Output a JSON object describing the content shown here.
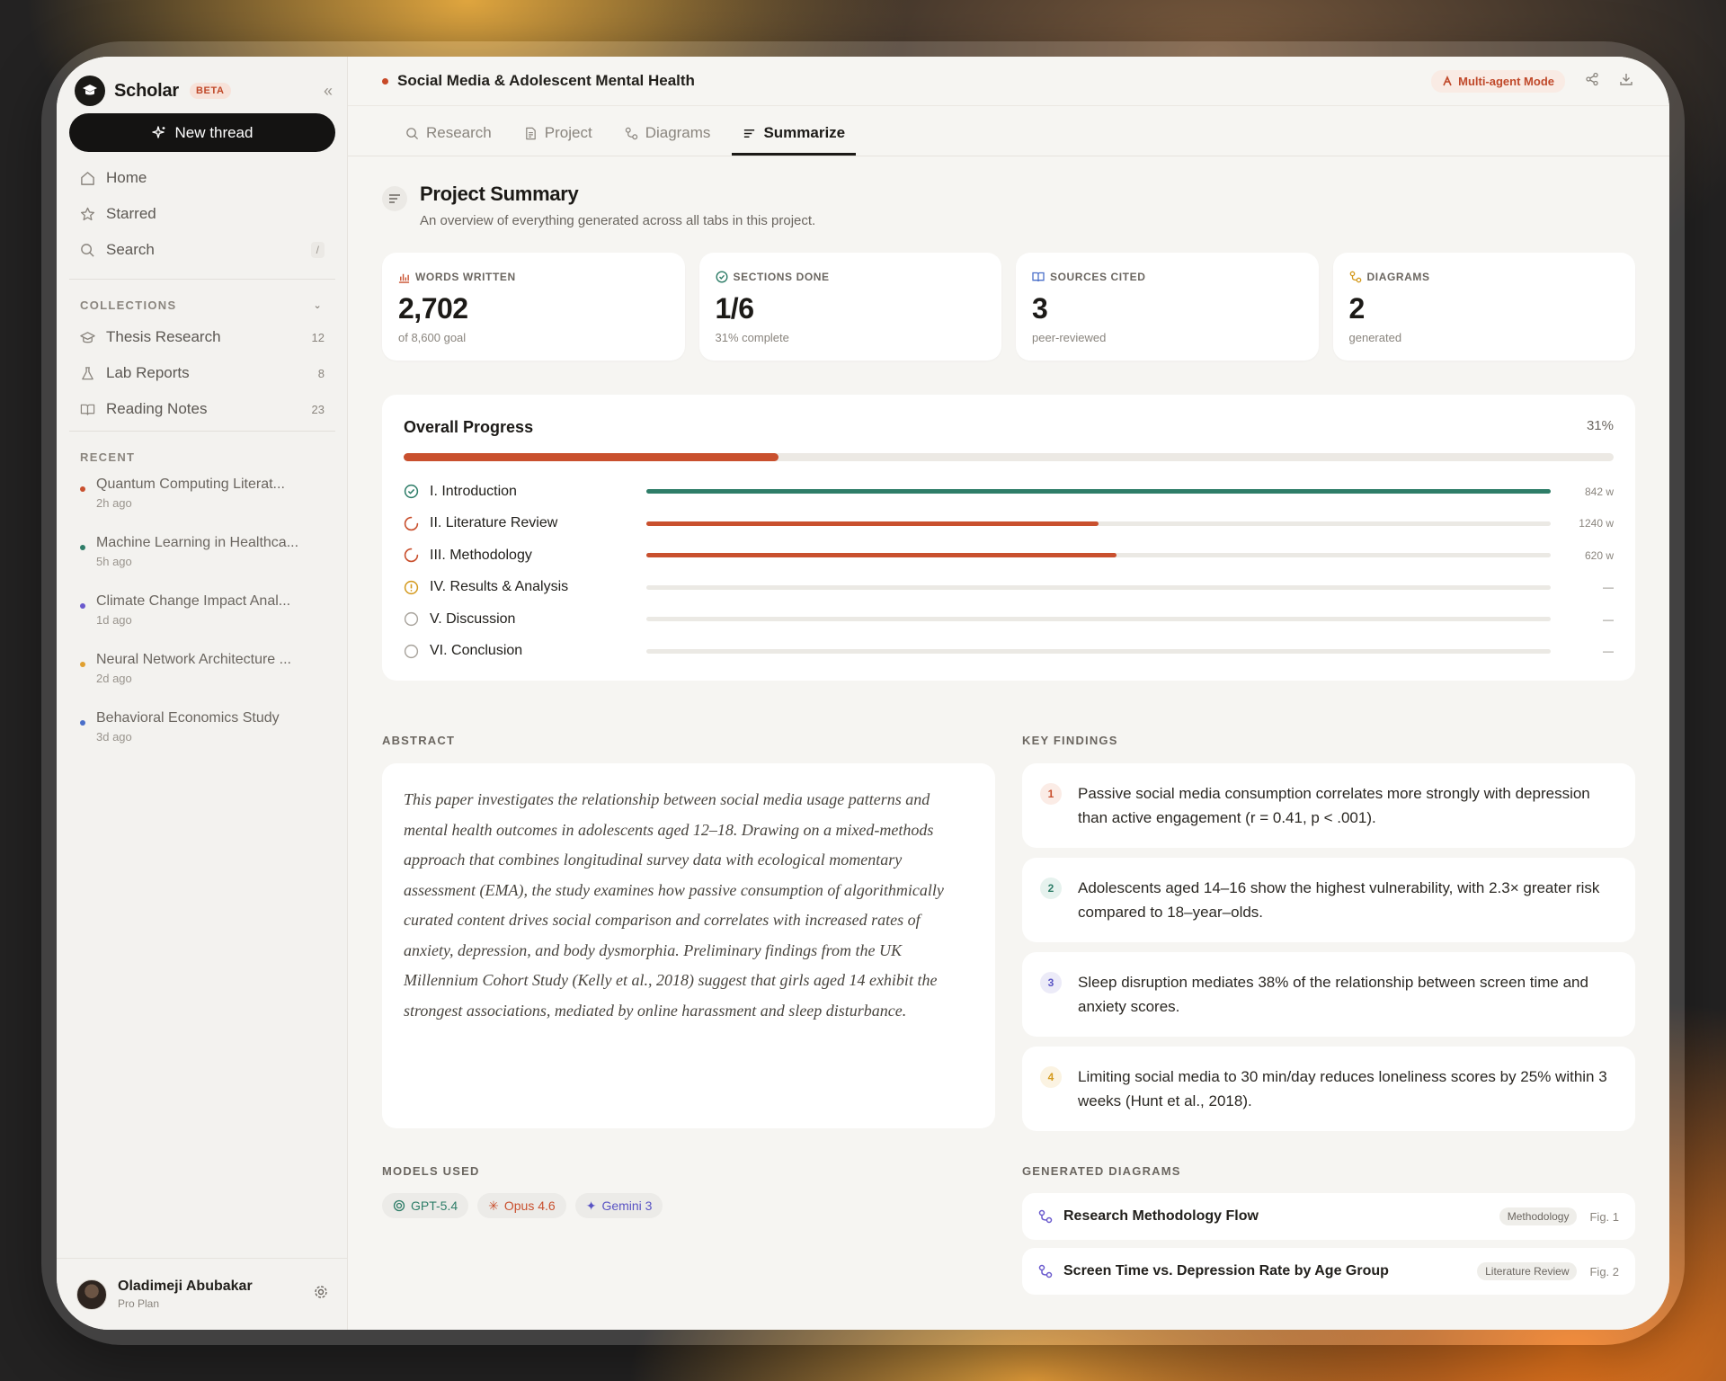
{
  "app": {
    "name": "Scholar",
    "badge": "BETA",
    "new_thread": "New thread"
  },
  "nav": {
    "home": "Home",
    "starred": "Starred",
    "search": "Search",
    "search_kbd": "/"
  },
  "collections": {
    "title": "COLLECTIONS",
    "items": [
      {
        "label": "Thesis Research",
        "count": "12"
      },
      {
        "label": "Lab Reports",
        "count": "8"
      },
      {
        "label": "Reading Notes",
        "count": "23"
      }
    ]
  },
  "recent": {
    "title": "RECENT",
    "items": [
      {
        "title": "Quantum Computing Literat...",
        "time": "2h ago",
        "color": "#c9502e"
      },
      {
        "title": "Machine Learning in Healthca...",
        "time": "5h ago",
        "color": "#2e7d68"
      },
      {
        "title": "Climate Change Impact Anal...",
        "time": "1d ago",
        "color": "#6a5acd"
      },
      {
        "title": "Neural Network Architecture ...",
        "time": "2d ago",
        "color": "#e0a030"
      },
      {
        "title": "Behavioral Economics Study",
        "time": "3d ago",
        "color": "#4a6fc9"
      }
    ]
  },
  "user": {
    "name": "Oladimeji Abubakar",
    "plan": "Pro Plan"
  },
  "header": {
    "title": "Social Media & Adolescent Mental Health",
    "mode": "Multi-agent Mode"
  },
  "tabs": {
    "research": "Research",
    "project": "Project",
    "diagrams": "Diagrams",
    "summarize": "Summarize"
  },
  "summary": {
    "title": "Project Summary",
    "subtitle": "An overview of everything generated across all tabs in this project."
  },
  "stats": [
    {
      "label": "WORDS WRITTEN",
      "value": "2,702",
      "sub": "of 8,600 goal"
    },
    {
      "label": "SECTIONS DONE",
      "value": "1/6",
      "sub": "31% complete"
    },
    {
      "label": "SOURCES CITED",
      "value": "3",
      "sub": "peer-reviewed"
    },
    {
      "label": "DIAGRAMS",
      "value": "2",
      "sub": "generated"
    }
  ],
  "progress": {
    "title": "Overall Progress",
    "percent_label": "31%",
    "percent": 0.31,
    "sections": [
      {
        "name": "I. Introduction",
        "words": "842 w",
        "fraction": 1.0,
        "status": "done"
      },
      {
        "name": "II. Literature Review",
        "words": "1240 w",
        "fraction": 0.5,
        "status": "in-progress"
      },
      {
        "name": "III. Methodology",
        "words": "620 w",
        "fraction": 0.52,
        "status": "in-progress"
      },
      {
        "name": "IV. Results & Analysis",
        "words": "—",
        "fraction": 0,
        "status": "warning"
      },
      {
        "name": "V. Discussion",
        "words": "—",
        "fraction": 0,
        "status": "todo"
      },
      {
        "name": "VI. Conclusion",
        "words": "—",
        "fraction": 0,
        "status": "todo"
      }
    ]
  },
  "abstract": {
    "title": "ABSTRACT",
    "text": "This paper investigates the relationship between social media usage patterns and mental health outcomes in adolescents aged 12–18. Drawing on a mixed-methods approach that combines longitudinal survey data with ecological momentary assessment (EMA), the study examines how passive consumption of algorithmically curated content drives social comparison and correlates with increased rates of anxiety, depression, and body dysmorphia. Preliminary findings from the UK Millennium Cohort Study (Kelly et al., 2018) suggest that girls aged 14 exhibit the strongest associations, mediated by online harassment and sleep disturbance."
  },
  "findings": {
    "title": "KEY FINDINGS",
    "items": [
      {
        "num": "1",
        "text": "Passive social media consumption correlates more strongly with depression than active engagement (r = 0.41, p < .001).",
        "color": "#c9502e",
        "bg": "#fbece6"
      },
      {
        "num": "2",
        "text": "Adolescents aged 14–16 show the highest vulnerability, with 2.3× greater risk compared to 18–year–olds.",
        "color": "#2e7d68",
        "bg": "#e6f2ee"
      },
      {
        "num": "3",
        "text": "Sleep disruption mediates 38% of the relationship between screen time and anxiety scores.",
        "color": "#5a54c4",
        "bg": "#ecebf8"
      },
      {
        "num": "4",
        "text": "Limiting social media to 30 min/day reduces loneliness scores by 25% within 3 weeks (Hunt et al., 2018).",
        "color": "#d49a1e",
        "bg": "#fbf3e2"
      }
    ]
  },
  "models": {
    "title": "MODELS USED",
    "items": [
      {
        "label": "GPT-5.4",
        "color": "#2e7d68",
        "icon": "openai-icon"
      },
      {
        "label": "Opus 4.6",
        "color": "#c9502e",
        "icon": "asterisk-icon"
      },
      {
        "label": "Gemini 3",
        "color": "#5a54c4",
        "icon": "sparkle-icon"
      }
    ]
  },
  "generated_diagrams": {
    "title": "GENERATED DIAGRAMS",
    "items": [
      {
        "name": "Research Methodology Flow",
        "tag": "Methodology",
        "fig": "Fig. 1"
      },
      {
        "name": "Screen Time vs. Depression Rate by Age Group",
        "tag": "Literature Review",
        "fig": "Fig. 2"
      }
    ]
  }
}
